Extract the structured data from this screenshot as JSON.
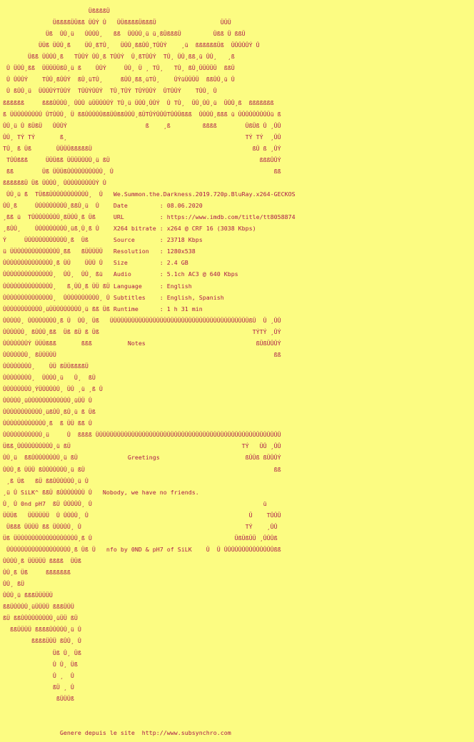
{
  "page": {
    "background_color": "#FCFC82",
    "text_color": "#AA1749"
  },
  "release": {
    "name": "We.Summon.the.Darkness.2019.720p.BluRay.x264-GECKOS",
    "date": "08.06.2020",
    "url": "https://www.imdb.com/title/tt8058874",
    "x264_bitrate": "x264 @ CRF 16 (3038 Kbps)",
    "source": "23718 Kbps",
    "resolution": "1280x538",
    "size": "2.4 GB",
    "audio": "5.1ch AC3 @ 640 Kbps",
    "language": "English",
    "subtitles": "English, Spanish",
    "runtime": "1 h 31 min"
  },
  "sections": {
    "notes_heading": "Notes",
    "greetings_heading": "Greetings",
    "notes_text": "Nobody, we have no friends.",
    "credits": "nfo by 0ND & pH7 of SiLK",
    "group_tags": [
      "SiLK^",
      "0nd pH7"
    ]
  },
  "footer": {
    "text": "Genere depuis le site  http://www.subsynchro.com"
  },
  "nfo_lines": [
    "                        ÜßßßßÜ",
    "              ÜßßßßÜÜßß ÜÛÝ Û   ÜÜßßßßÜßßßÜ                  ÜÜÜ",
    "            Üß  ÛÛ¸ü   ÛÛÛÛ¸   ßß  ÜÛÛÛ¸ü ü¸ßÜßßßÜ         Üßß Ü ßßÜ",
    "          ÜÜß ÜÛÛ¸ß    ÜÛ¸ßTÛ¸   ÜÛÛ¸ßßÛÛ¸TÛÛÝ    ¸ü  ßßßßßßÜß  ÜÛÛÛÛÝ Û",
    "       Üßß ÜÛÛÛ¸ß   TÛÛÝ ÛÛ¸ß TÛÛÝ  Û¸ßTÛÛÝ  TÛ¸ ÜÛ¸ßß¸ü ÛÛ¸   ¸ß",
    " Û ÜÛÛ¸ßß  ÜÜÜÜÜßÛ¸ü ß    ÛÛÝ     ÛÛ¸ Ü ¸ TÛ¸   TÛ¸ ßÛ¸ÜÜÜÜÜ  ßßÜ",
    " Û ÛÛÛÝ    TÛÛ¸ßÛÛÝ  ßÛ¸üTÛ¸     ßÛÛ¸ßß¸üTÛ¸    ÛÝüÜÜÜÜ  ßßÛÛ¸ü Û",
    " Û ßÛÛ¸ü  ÜÛÛÛÝTÛÛÝ  TÛÛÝÛÛÝ  TÛ¸TÛÝ TÛÝÛÛÝ  ÛTÛÛÝ    TÛÛ¸ Û",
    "ßßßßßß     ßßßÛÛÛÛ¸ ÛÛÛ üÜÜÛÛÛÝ TÛ¸ü ÜÛÛ¸ÛÛÝ  Û TÛ¸  ÜÛ¸ÛÛ¸ü  ÜÛÛ¸ß  ßßßßßßß",
    "ß ÜÜÛÛÛÛÛÛÛ ÛTÛÛÛ¸ Ü ßßÛÛÛÛÛßßÜÛßßÛÛÛ¸ßÜTÛÝÛÛÛTÛÛÜßßß  ÛÛÛÛ¸ßßß ü ÜÛÛÛÛÛÛÛÜü ß",
    "ÛÛ¸ü Û ßÜßÜ   ÛÛÛÝ                      ß    ¸ß         ßßßß        ÜßÜß Û ¸ÛÛ",
    "ÛÛ¸ TÝ TÝ       ß¸                                                  TÝ TÝ  ¸ÛÛ",
    "TÛ¸ ß Üß       ÜÜÜÜßßßßßÜ                                             ßÜ ß ¸ÛÝ",
    " TÛÛßßß     ÜÜÜßß ÜÜÜÜÛÛÛ¸ü ßÜ                                          ßßßÛÛÝ",
    " ßß        Üß ÜÜÜßÛÛÛÛÛÛÛÛÛÛ¸ Û                                             ßß",
    "ßßßßßßÜ Üß ÜÛÛÛ¸ ÛÛÛÛÛÛÛÛÛÝ Û",
    " ÛÛ¸ü ß  TÜßßÜÛÛÛÛÛÛÛÛÛÛ¸  Û   We.Summon.the.Darkness.2019.720p.BluRay.x264-GECKOS",
    "ÛÛ¸ß     ÛÛÛÛÛÛÛÛÛ¸ßßÛ¸ü  Û    Date         : 08.06.2020",
    "¸ßß ü  TÛÛÛÛÛÛÛÛ¸ßÜÛÛ¸ß Üß     URL          : https://www.imdb.com/title/tt8058874",
    "¸ßÛÛ¸    ÛÛÛÛÛÛÛÛÛ¸üß¸Û¸ß Û    X264 bitrate : x264 @ CRF 16 (3038 Kbps)",
    "Ý     ÜÛÛÛÛÛÛÛÛÛÛÛ¸ß  Üß       Source       : 23718 Kbps",
    "ü ÜÜÛÛÛÛÛÛÛÛÛÛÛÛ¸ßß   ßÜÜÜÜÜ   Resolution   : 1280x538",
    "ÛÛÛÛÛÛÛÛÛÛÛÛÛÛ¸ß ÜÜ    ÜÜÜ Û   Size         : 2.4 GB",
    "ÛÛÛÛÛÛÛÛÛÛÛÛÛÛ¸  ÛÛ¸  ÛÛ¸ ßü   Audio        : 5.1ch AC3 @ 640 Kbps",
    "ÛÛÛÛÛÛÛÛÛÛÛÛÛÛ¸   ß¸ÜÛ¸ß ÜÜ ßÜ Language     : English",
    "ÛÛÛÛÛÛÛÛÛÛÛÛÛÛ¸  ÛÛÛÛÛÛÛÛÛÛ¸ Û Subtitles    : English, Spanish",
    "ÛÛÛÛÛÛÛÛÛÛÛ¸üÜÜÛÛÛÛÛÛÛ¸ü ßß Üß Runtime      : 1 h 31 min",
    "ÛÛÛÛÛ¸ ÛÛÛÛÛÛÛÛ¸ß Ü  ÛÛ¸ Üß   ÜÜÜÜÜÜÜÜÜÜÜÜÜÜÜÜÜÜÜÜÜÜÜÜÜÜÜÜÜÜÜÜÜÜÜÜÜÜÜßÜ  Ü ¸ÛÛ",
    "ÛÛÛÛÛÛ¸ ßÛÛÛ¸ßß  Üß ßÜ ß Üß                                           TÝTÝ ¸ÛÝ",
    "ÛÛÛÛÛÛÛÝ ÜÜÜßßß       ßßß          Notes                               ßÜßÜÛÛÝ",
    "ÛÛÛÛÛÛÛ¸ ßÜÜÜÜÜ                                                             ßß",
    "ÛÛÛÛÛÛÛÛ¸    ÜÜ ßÜÜßßßßÜ",
    "ÛÛÛÛÛÛÛÛ¸  ÜÛÛÛ¸ü   Û¸  ßÜ",
    "ÛÛÛÛÛÛÛÛ¸ÝÜÛÛÛÛÛ¸ ÜÛ ¸ü ¸ß Û",
    "ÛÛÛÛÛ¸üÛÛÛÛÛÛÛÛÛÛÛÛ¸üÜÜ Û",
    "ÛÛÛÛÛÛÛÛÛÛÛ¸üßÛÛ¸ßÛ¸ü ß Üß",
    "ÛÛÛÛÛÛÛÛÛÛÛÛ¸ß  ß ÜÜ ßß Û",
    "ÛÛÛÛÛÛÛÛÛÛÛ¸ü     Û  ßßßß ÜÜÜÜÜÜÜÜÜÜÜÜÜÜÜÜÜÜÜÜÜÜÜÜÜÜÜÜÜÜÜÜÜÜÜÜÜÜÜÜÜÜÜÜÜÜÜÜÜÜÜÜ",
    "Üßß¸ÛÛÛÛÛÛÛÛÛÛ¸ü ßÜ                                                TÝ   ÜÛ ¸ÛÛ",
    "ÛÛ¸ü  ßßÛÛÛÛÛÛÛÛ¸ü ßÜ              Greetings                        ßÜÜß ßÜÛÛÝ",
    "ÛÛÛ¸ß ÜÜÜ ßÛÛÛÛÛÛÛ¸ü ßÜ                                                     ßß",
    " ¸ß Üß   ßÜ ßßÛÛÛÛÛÛ¸ü Û",
    "¸ü Û SiLK^ ßßÜ ßÛÛÛÛÛÛÜ Û   Nobody, we have no friends.",
    "Û¸ Û 0nd pH7  ßÜ ÛÛÛÛÛ¸ Û                                                ü",
    "ÜÜÜß   ÜÜÜÜÜÜ  Û ÛÛÛÛ¸ Û                                             Ü    TÛÛÜ",
    " Üßßß ÜÜÜÜ ßß ÜÛÛÛÛ¸ Û                                              TÝ    ¸ÛÛ",
    "Üß ÜÜÛÛÛÛÛÛÛÛÛÛÛÛÛÛÛÛ¸ß Û                                        ÜßÜßÜÜ ¸ÛÛÛß",
    " ÛÛÛÛÛÛÛÛÛÛÛÛÛÛÛÛÛÛ¸ß Üß Ü   nfo by 0ND & pH7 of SiLK    Ü  Ü ÛÛÛÛÛÛÛÛÛÛÛÛÛÛßß",
    "ÛÛÛÛ¸ß ÜÜÜÜÜ ßßßß  ÜÜß",
    "ÛÛ¸ß Üß     ßßßßßßß",
    "ÛÛ¸ ßÜ",
    "ÛÛÛ¸ü ßßßÜÜÜÜÜ",
    "ßßÜÛÛÛÛ¸üÜÜÜÜ ßßßÜÜÜ",
    "ßÜ ßßÛÛÛÛÛÛÛÛÛ¸üÜÜ ßÜ",
    "  ßßÜÜÜÜ ßßßßÛÛÛÛÛ¸ü Û",
    "        ßßßßÜÜÜ ßÛÛ¸ Û",
    "              Üß Û¸ Üß",
    "              Û Û¸ Üß",
    "              Û ¸  Û",
    "              ßÜ ¸ Û",
    "               ßÜÜÜß",
    "",
    "",
    "                Genere depuis le site  http://www.subsynchro.com"
  ]
}
